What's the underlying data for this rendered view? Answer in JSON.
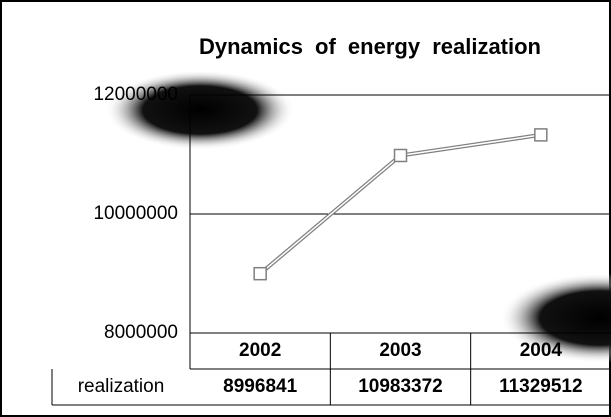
{
  "chart_data": {
    "type": "line",
    "title": "Dynamics of energy realization",
    "categories": [
      "2002",
      "2003",
      "2004"
    ],
    "series": [
      {
        "name": "realization",
        "color": "#808080",
        "values": [
          8996841,
          10983372,
          11329512
        ]
      }
    ],
    "ylim": [
      8000000,
      12000000
    ],
    "yticks": [
      8000000,
      10000000,
      12000000
    ],
    "grid": true
  }
}
